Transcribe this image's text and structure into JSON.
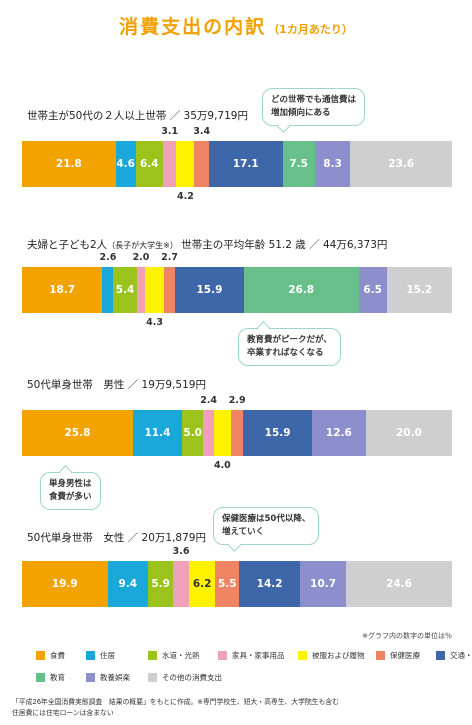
{
  "title": {
    "main": "消費支出の内訳",
    "sub": "（1カ月あたり）"
  },
  "note": "※グラフ内の数字の単位は％",
  "footer": [
    "「平成26年全国消費実態調査　結果の概要」をもとに作成。※専門学校生、短大・高専生、大学院生も含む",
    "住居費には住宅ローンは含まない"
  ],
  "legend": [
    {
      "label": "食費",
      "color": "#f2a300"
    },
    {
      "label": "住居",
      "color": "#1aa7d9"
    },
    {
      "label": "水道・光熱",
      "color": "#9cc31b"
    },
    {
      "label": "家具・家事用品",
      "color": "#f0a0b8"
    },
    {
      "label": "被服および履物",
      "color": "#fff200"
    },
    {
      "label": "保健医療",
      "color": "#ee8463"
    },
    {
      "label": "交通・通信",
      "color": "#3d67a8"
    },
    {
      "label": "教育",
      "color": "#67c08a"
    },
    {
      "label": "教養娯楽",
      "color": "#8c8fcb"
    },
    {
      "label": "その他の消費支出",
      "color": "#cfcfcf"
    }
  ],
  "chart_data": [
    {
      "type": "bar",
      "title": "世帯主が50代の２人以上世帯 ／ 35万9,719円",
      "series": [
        {
          "name": "食費",
          "value": 21.8
        },
        {
          "name": "住居",
          "value": 4.6
        },
        {
          "name": "水道・光熱",
          "value": 6.4
        },
        {
          "name": "家具・家事用品",
          "value": 3.1
        },
        {
          "name": "被服および履物",
          "value": 4.2
        },
        {
          "name": "保健医療",
          "value": 3.4
        },
        {
          "name": "交通・通信",
          "value": 17.1
        },
        {
          "name": "教育",
          "value": 7.5
        },
        {
          "name": "教養娯楽",
          "value": 8.3
        },
        {
          "name": "その他の消費支出",
          "value": 23.6
        }
      ],
      "callout": "どの世帯でも通信費は\n増加傾向にある"
    },
    {
      "type": "bar",
      "title": "夫婦と子ども2人",
      "title_small": "（長子が大学生※）",
      "title_rest": "世帯主の平均年齢 51.2 歳 ／ 44万6,373円",
      "series": [
        {
          "name": "食費",
          "value": 18.7
        },
        {
          "name": "住居",
          "value": 2.6
        },
        {
          "name": "水道・光熱",
          "value": 5.4
        },
        {
          "name": "家具・家事用品",
          "value": 2.0
        },
        {
          "name": "被服および履物",
          "value": 4.3
        },
        {
          "name": "保健医療",
          "value": 2.7
        },
        {
          "name": "交通・通信",
          "value": 15.9
        },
        {
          "name": "教育",
          "value": 26.8
        },
        {
          "name": "教養娯楽",
          "value": 6.5
        },
        {
          "name": "その他の消費支出",
          "value": 15.2
        }
      ],
      "callout": "教育費がピークだが、\n卒業すればなくなる"
    },
    {
      "type": "bar",
      "title": "50代単身世帯　男性 ／ 19万9,519円",
      "series": [
        {
          "name": "食費",
          "value": 25.8
        },
        {
          "name": "住居",
          "value": 11.4
        },
        {
          "name": "水道・光熱",
          "value": 5.0
        },
        {
          "name": "家具・家事用品",
          "value": 2.4
        },
        {
          "name": "被服および履物",
          "value": 4.0
        },
        {
          "name": "保健医療",
          "value": 2.9
        },
        {
          "name": "交通・通信",
          "value": 15.9
        },
        {
          "name": "教育",
          "value": 0
        },
        {
          "name": "教養娯楽",
          "value": 12.6
        },
        {
          "name": "その他の消費支出",
          "value": 20.0
        }
      ],
      "callout": "単身男性は\n食費が多い"
    },
    {
      "type": "bar",
      "title": "50代単身世帯　女性 ／ 20万1,879円",
      "series": [
        {
          "name": "食費",
          "value": 19.9
        },
        {
          "name": "住居",
          "value": 9.4
        },
        {
          "name": "水道・光熱",
          "value": 5.9
        },
        {
          "name": "家具・家事用品",
          "value": 3.6
        },
        {
          "name": "被服および履物",
          "value": 6.2
        },
        {
          "name": "保健医療",
          "value": 5.5
        },
        {
          "name": "交通・通信",
          "value": 14.2
        },
        {
          "name": "教育",
          "value": 0
        },
        {
          "name": "教養娯楽",
          "value": 10.7
        },
        {
          "name": "その他の消費支出",
          "value": 24.6
        }
      ],
      "callout": "保健医療は50代以降、\n増えていく"
    }
  ]
}
